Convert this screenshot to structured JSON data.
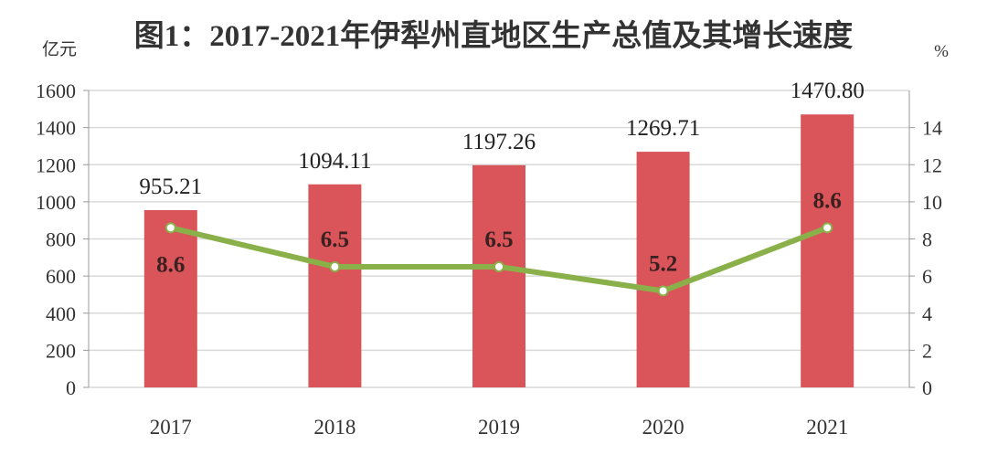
{
  "chart_data": {
    "type": "bar+line",
    "title": "图1：2017-2021年伊犁州直地区生产总值及其增长速度",
    "ylabel_left": "亿元",
    "ylabel_right": "%",
    "categories": [
      "2017",
      "2018",
      "2019",
      "2020",
      "2021"
    ],
    "ylim_left": [
      0,
      1600
    ],
    "yticks_left": [
      0,
      200,
      400,
      600,
      800,
      1000,
      1200,
      1400,
      1600
    ],
    "ylim_right": [
      0,
      16
    ],
    "yticks_right": [
      0,
      2,
      4,
      6,
      8,
      10,
      12,
      14
    ],
    "grid": true,
    "series": [
      {
        "type": "bar",
        "axis": "left",
        "values": [
          955.21,
          1094.11,
          1197.26,
          1269.71,
          1470.8
        ],
        "labels": [
          "955.21",
          "1094.11",
          "1197.26",
          "1269.71",
          "1470.80"
        ],
        "color": "#d9555a"
      },
      {
        "type": "line",
        "axis": "right",
        "values": [
          8.6,
          6.5,
          6.5,
          5.2,
          8.6
        ],
        "labels": [
          "8.6",
          "6.5",
          "6.5",
          "5.2",
          "8.6"
        ],
        "color": "#8ab04a"
      }
    ]
  }
}
